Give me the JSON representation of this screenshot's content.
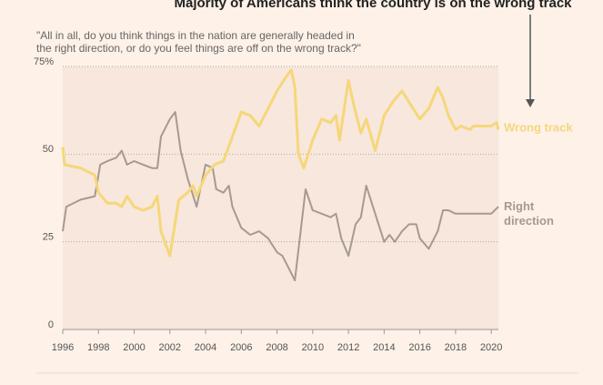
{
  "chart_data": {
    "type": "line",
    "title": "Majority of Americans think the country is on the wrong track",
    "subtitle": [
      "\"All in all, do you think things in the nation are generally headed in",
      "the right direction, or do you feel things are off on the wrong track?\""
    ],
    "xlim": [
      1996,
      2020.4
    ],
    "xticks": [
      1996,
      1998,
      2000,
      2002,
      2004,
      2006,
      2008,
      2010,
      2012,
      2014,
      2016,
      2018,
      2020
    ],
    "ylim": [
      0,
      75
    ],
    "yticks": [
      0,
      25,
      50,
      {
        "value": 75,
        "label": "75%"
      }
    ],
    "grid": true,
    "series": [
      {
        "name": "Wrong track",
        "color": "#f5d77a",
        "x": [
          1996,
          1996.1,
          1997,
          1997.8,
          1998,
          1998.5,
          1999,
          1999.3,
          1999.6,
          2000,
          2000.5,
          2001,
          2001.3,
          2001.5,
          2002,
          2002.5,
          2003,
          2003.3,
          2003.5,
          2004,
          2004.5,
          2005,
          2005.5,
          2006,
          2006.5,
          2007,
          2007.5,
          2008,
          2008.5,
          2008.8,
          2009,
          2009.2,
          2009.5,
          2010,
          2010.5,
          2011,
          2011.3,
          2011.5,
          2012,
          2012.3,
          2012.7,
          2013,
          2013.5,
          2014,
          2014.5,
          2015,
          2015.5,
          2016,
          2016.5,
          2017,
          2017.3,
          2017.6,
          2018,
          2018.3,
          2018.8,
          2019,
          2020,
          2020.3,
          2020.4
        ],
        "values": [
          52,
          47,
          46,
          44,
          39,
          36,
          36,
          35,
          38,
          35,
          34,
          35,
          38,
          28,
          21,
          37,
          39,
          41,
          38,
          44,
          47,
          48,
          55,
          62,
          61,
          58,
          63,
          68,
          72,
          74,
          69,
          50,
          46,
          54,
          60,
          59,
          61,
          54,
          71,
          64,
          56,
          60,
          51,
          61,
          65,
          68,
          64,
          60,
          63,
          69,
          66,
          61,
          57,
          58,
          57,
          58,
          58,
          59,
          57
        ]
      },
      {
        "name": "Right direction",
        "color": "#a59a92",
        "x": [
          1996,
          1996.2,
          1997,
          1997.8,
          1998.1,
          1998.5,
          1999,
          1999.3,
          1999.6,
          2000,
          2000.5,
          2001,
          2001.3,
          2001.5,
          2002,
          2002.3,
          2002.6,
          2003,
          2003.5,
          2004,
          2004.4,
          2004.6,
          2005,
          2005.3,
          2005.5,
          2006,
          2006.5,
          2007,
          2007.5,
          2008,
          2008.3,
          2008.6,
          2009,
          2009.3,
          2009.6,
          2010,
          2010.5,
          2011,
          2011.3,
          2011.6,
          2012,
          2012.4,
          2012.7,
          2013,
          2013.5,
          2014,
          2014.3,
          2014.6,
          2015,
          2015.4,
          2015.8,
          2016,
          2016.5,
          2017,
          2017.3,
          2017.6,
          2018,
          2018.5,
          2019,
          2019.5,
          2020,
          2020.4
        ],
        "values": [
          28,
          35,
          37,
          38,
          47,
          48,
          49,
          51,
          47,
          48,
          47,
          46,
          46,
          55,
          60,
          62,
          51,
          43,
          35,
          47,
          46,
          40,
          39,
          41,
          35,
          29,
          27,
          28,
          26,
          22,
          21,
          18,
          14,
          27,
          40,
          34,
          33,
          32,
          33,
          26,
          21,
          30,
          32,
          41,
          33,
          25,
          27,
          25,
          28,
          30,
          30,
          26,
          23,
          28,
          34,
          34,
          33,
          33,
          33,
          33,
          33,
          35
        ]
      }
    ]
  }
}
